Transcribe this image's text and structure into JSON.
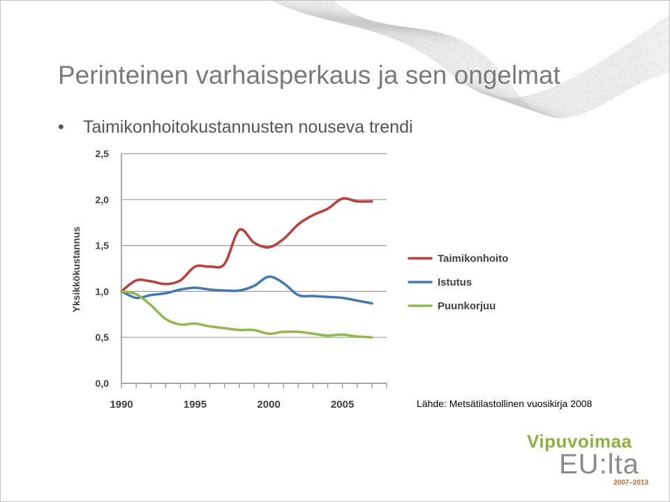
{
  "slide": {
    "title": "Perinteinen varhaisperkaus ja sen ongelmat",
    "bullet": "•",
    "bullet_text": "Taimikonhoitokustannusten nouseva trendi",
    "source": "Lähde: Metsätilastollinen vuosikirja 2008"
  },
  "logo": {
    "brand": "Vipuvoimaa",
    "eu": "EU:lta",
    "years": "2007–2013",
    "colors": {
      "brand": "#8db33e",
      "eu": "#8a8a8a",
      "years": "#c66a2a"
    }
  },
  "chart_data": {
    "type": "line",
    "title": "",
    "xlabel": "",
    "ylabel": "Yksikkökustannus",
    "xlim": [
      1990,
      2008
    ],
    "ylim": [
      0,
      2.5
    ],
    "x_ticks": [
      1990,
      1995,
      2000,
      2005
    ],
    "x_tick_labels": [
      "1990",
      "1995",
      "2000",
      "2005"
    ],
    "y_ticks": [
      0,
      0.5,
      1.0,
      1.5,
      2.0,
      2.5
    ],
    "y_tick_labels": [
      "0,0",
      "0,5",
      "1,0",
      "1,5",
      "2,0",
      "2,5"
    ],
    "grid": true,
    "legend_position": "right",
    "x": [
      1990,
      1991,
      1992,
      1993,
      1994,
      1995,
      1996,
      1997,
      1998,
      1999,
      2000,
      2001,
      2002,
      2003,
      2004,
      2005,
      2006,
      2007
    ],
    "series": [
      {
        "name": "Taimikonhoito",
        "color": "#c0393b",
        "values": [
          1.0,
          1.12,
          1.11,
          1.08,
          1.12,
          1.27,
          1.27,
          1.3,
          1.67,
          1.53,
          1.48,
          1.57,
          1.73,
          1.83,
          1.9,
          2.01,
          1.98,
          1.98
        ]
      },
      {
        "name": "Istutus",
        "color": "#3e78b5",
        "values": [
          1.0,
          0.93,
          0.96,
          0.98,
          1.02,
          1.04,
          1.02,
          1.01,
          1.01,
          1.06,
          1.16,
          1.09,
          0.96,
          0.95,
          0.94,
          0.93,
          0.9,
          0.87
        ]
      },
      {
        "name": "Puunkorjuu",
        "color": "#92b84a",
        "values": [
          1.0,
          0.97,
          0.85,
          0.7,
          0.64,
          0.65,
          0.62,
          0.6,
          0.58,
          0.58,
          0.54,
          0.56,
          0.56,
          0.54,
          0.52,
          0.53,
          0.51,
          0.5
        ]
      }
    ]
  }
}
